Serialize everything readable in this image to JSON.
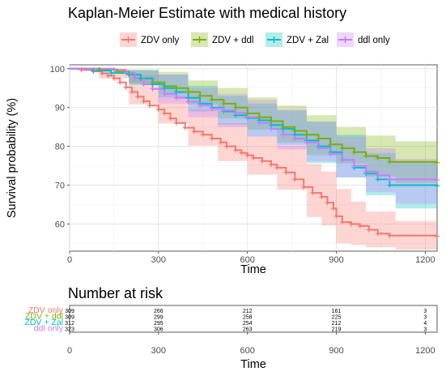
{
  "chart_data": [
    {
      "type": "line",
      "title": "Kaplan-Meier Estimate with medical history",
      "xlabel": "Time",
      "ylabel": "Survival probability (%)",
      "xlim": [
        0,
        1240
      ],
      "ylim": [
        53,
        101
      ],
      "x_ticks": [
        0,
        300,
        600,
        900,
        1200
      ],
      "y_ticks": [
        60,
        70,
        80,
        90,
        100
      ],
      "grid": true,
      "legend_position": "top",
      "series": [
        {
          "name": "ZDV only",
          "color": "#F8766D",
          "fill": "#F8766D",
          "points": [
            [
              0,
              100
            ],
            [
              40,
              99.7
            ],
            [
              80,
              99.3
            ],
            [
              110,
              98.8
            ],
            [
              130,
              98.2
            ],
            [
              150,
              97.5
            ],
            [
              170,
              96.5
            ],
            [
              190,
              95.2
            ],
            [
              210,
              94
            ],
            [
              230,
              92.8
            ],
            [
              250,
              91.6
            ],
            [
              270,
              90.5
            ],
            [
              300,
              89.5
            ],
            [
              320,
              88.5
            ],
            [
              340,
              87.2
            ],
            [
              360,
              86
            ],
            [
              390,
              84.8
            ],
            [
              420,
              83.8
            ],
            [
              450,
              83
            ],
            [
              480,
              82
            ],
            [
              510,
              81
            ],
            [
              530,
              80
            ],
            [
              560,
              79
            ],
            [
              580,
              78.3
            ],
            [
              600,
              77.7
            ],
            [
              620,
              77
            ],
            [
              650,
              76.2
            ],
            [
              680,
              75.3
            ],
            [
              700,
              74.5
            ],
            [
              730,
              73.3
            ],
            [
              760,
              71.5
            ],
            [
              790,
              69.5
            ],
            [
              820,
              68
            ],
            [
              850,
              67
            ],
            [
              870,
              65.5
            ],
            [
              890,
              64
            ],
            [
              900,
              62
            ],
            [
              920,
              60.5
            ],
            [
              950,
              60
            ],
            [
              980,
              59.5
            ],
            [
              1010,
              58.5
            ],
            [
              1040,
              57.5
            ],
            [
              1080,
              57
            ],
            [
              1240,
              56.8
            ]
          ],
          "ci_upper": [
            [
              0,
              100
            ],
            [
              100,
              99.9
            ],
            [
              200,
              98.3
            ],
            [
              300,
              93.2
            ],
            [
              400,
              89.6
            ],
            [
              500,
              86
            ],
            [
              600,
              82.7
            ],
            [
              700,
              80.2
            ],
            [
              800,
              75.5
            ],
            [
              850,
              73.5
            ],
            [
              900,
              69
            ],
            [
              950,
              65.8
            ],
            [
              1000,
              63.2
            ],
            [
              1100,
              60.8
            ],
            [
              1240,
              60.5
            ]
          ],
          "ci_lower": [
            [
              0,
              100
            ],
            [
              100,
              97.5
            ],
            [
              200,
              90.8
            ],
            [
              300,
              85.9
            ],
            [
              400,
              80.2
            ],
            [
              500,
              76.2
            ],
            [
              600,
              72.7
            ],
            [
              700,
              68.8
            ],
            [
              800,
              61.8
            ],
            [
              850,
              59.6
            ],
            [
              900,
              55
            ],
            [
              950,
              54.6
            ],
            [
              1000,
              54
            ],
            [
              1100,
              53.4
            ],
            [
              1240,
              53.2
            ]
          ]
        },
        {
          "name": "ZDV + ddl",
          "color": "#7CAE00",
          "fill": "#7CAE00",
          "points": [
            [
              0,
              100
            ],
            [
              100,
              99.8
            ],
            [
              160,
              99.3
            ],
            [
              200,
              98.5
            ],
            [
              240,
              97.5
            ],
            [
              280,
              96.5
            ],
            [
              320,
              95.5
            ],
            [
              360,
              95
            ],
            [
              400,
              94
            ],
            [
              440,
              93
            ],
            [
              480,
              92
            ],
            [
              520,
              91
            ],
            [
              560,
              90
            ],
            [
              600,
              88.5
            ],
            [
              640,
              87.5
            ],
            [
              680,
              86.5
            ],
            [
              720,
              85
            ],
            [
              760,
              84
            ],
            [
              800,
              83
            ],
            [
              840,
              82
            ],
            [
              880,
              80.5
            ],
            [
              920,
              79.5
            ],
            [
              960,
              78.5
            ],
            [
              1000,
              77.5
            ],
            [
              1040,
              77
            ],
            [
              1080,
              76
            ],
            [
              1240,
              75.8
            ]
          ],
          "ci_upper": [
            [
              0,
              100
            ],
            [
              200,
              99.8
            ],
            [
              300,
              99.2
            ],
            [
              400,
              97
            ],
            [
              500,
              95
            ],
            [
              600,
              92.6
            ],
            [
              700,
              90.5
            ],
            [
              800,
              88
            ],
            [
              900,
              85
            ],
            [
              1000,
              82.8
            ],
            [
              1100,
              81.3
            ],
            [
              1240,
              81.2
            ]
          ],
          "ci_lower": [
            [
              0,
              100
            ],
            [
              200,
              96.2
            ],
            [
              300,
              93.4
            ],
            [
              400,
              90.8
            ],
            [
              500,
              87.2
            ],
            [
              600,
              84.3
            ],
            [
              700,
              81
            ],
            [
              800,
              77.8
            ],
            [
              900,
              75.6
            ],
            [
              1000,
              72.2
            ],
            [
              1100,
              70.6
            ],
            [
              1240,
              70.4
            ]
          ]
        },
        {
          "name": "ZDV + Zal",
          "color": "#00BFC4",
          "fill": "#00BFC4",
          "points": [
            [
              0,
              100
            ],
            [
              80,
              99.5
            ],
            [
              140,
              98.9
            ],
            [
              200,
              98.5
            ],
            [
              240,
              97.5
            ],
            [
              280,
              96
            ],
            [
              320,
              95
            ],
            [
              360,
              94
            ],
            [
              400,
              92.5
            ],
            [
              440,
              91
            ],
            [
              480,
              90
            ],
            [
              520,
              89
            ],
            [
              560,
              88
            ],
            [
              600,
              87.3
            ],
            [
              640,
              86.7
            ],
            [
              680,
              85.5
            ],
            [
              720,
              84.5
            ],
            [
              760,
              83
            ],
            [
              800,
              81.5
            ],
            [
              840,
              80
            ],
            [
              880,
              78.5
            ],
            [
              920,
              76.5
            ],
            [
              960,
              74.5
            ],
            [
              1000,
              73
            ],
            [
              1040,
              71.5
            ],
            [
              1080,
              70
            ],
            [
              1240,
              69.8
            ]
          ],
          "ci_upper": [
            [
              0,
              100
            ],
            [
              200,
              99.6
            ],
            [
              300,
              98.5
            ],
            [
              400,
              95.6
            ],
            [
              500,
              93
            ],
            [
              600,
              91
            ],
            [
              700,
              89.2
            ],
            [
              800,
              86.4
            ],
            [
              900,
              83
            ],
            [
              1000,
              78.3
            ],
            [
              1100,
              76.2
            ],
            [
              1240,
              76
            ]
          ],
          "ci_lower": [
            [
              0,
              100
            ],
            [
              200,
              95.8
            ],
            [
              300,
              92.6
            ],
            [
              400,
              89
            ],
            [
              500,
              85.6
            ],
            [
              600,
              82.6
            ],
            [
              700,
              80.4
            ],
            [
              800,
              75.7
            ],
            [
              900,
              72
            ],
            [
              1000,
              67.4
            ],
            [
              1100,
              64
            ],
            [
              1240,
              63.8
            ]
          ]
        },
        {
          "name": "ddl only",
          "color": "#C77CFF",
          "fill": "#C77CFF",
          "points": [
            [
              0,
              100
            ],
            [
              150,
              99.7
            ],
            [
              190,
              99
            ],
            [
              220,
              97.5
            ],
            [
              250,
              96
            ],
            [
              280,
              94.8
            ],
            [
              320,
              93.5
            ],
            [
              360,
              92.5
            ],
            [
              400,
              91.5
            ],
            [
              440,
              90.5
            ],
            [
              480,
              89.8
            ],
            [
              520,
              89.3
            ],
            [
              560,
              88.6
            ],
            [
              600,
              87.5
            ],
            [
              640,
              86
            ],
            [
              680,
              84.5
            ],
            [
              720,
              83
            ],
            [
              760,
              82
            ],
            [
              800,
              81
            ],
            [
              840,
              79.5
            ],
            [
              880,
              78
            ],
            [
              920,
              76.5
            ],
            [
              960,
              75
            ],
            [
              1000,
              73.5
            ],
            [
              1040,
              72.5
            ],
            [
              1080,
              71.5
            ],
            [
              1240,
              71.3
            ]
          ],
          "ci_upper": [
            [
              0,
              100
            ],
            [
              200,
              99.5
            ],
            [
              300,
              98.5
            ],
            [
              400,
              95
            ],
            [
              500,
              93.5
            ],
            [
              600,
              92
            ],
            [
              700,
              89.5
            ],
            [
              800,
              86.3
            ],
            [
              900,
              82.5
            ],
            [
              1000,
              79.5
            ],
            [
              1100,
              76.8
            ],
            [
              1240,
              76.6
            ]
          ],
          "ci_lower": [
            [
              0,
              100
            ],
            [
              200,
              96.3
            ],
            [
              300,
              91
            ],
            [
              400,
              87.5
            ],
            [
              500,
              85
            ],
            [
              600,
              82.6
            ],
            [
              700,
              79.2
            ],
            [
              800,
              76.1
            ],
            [
              900,
              72
            ],
            [
              1000,
              68.2
            ],
            [
              1100,
              65.2
            ],
            [
              1240,
              65
            ]
          ]
        }
      ]
    },
    {
      "type": "table",
      "title": "Number at risk",
      "xlabel": "Time",
      "x_ticks": [
        0,
        300,
        600,
        900,
        1200
      ],
      "rows": [
        {
          "label": "ZDV only",
          "color": "#F8766D",
          "values": [
            "309",
            "266",
            "212",
            "161",
            "3"
          ]
        },
        {
          "label": "ZDV + ddl",
          "color": "#7CAE00",
          "values": [
            "309",
            "299",
            "258",
            "225",
            "3"
          ]
        },
        {
          "label": "ZDV + Zal",
          "color": "#00BFC4",
          "values": [
            "312",
            "295",
            "254",
            "212",
            "4"
          ]
        },
        {
          "label": "ddl only",
          "color": "#C77CFF",
          "values": [
            "323",
            "306",
            "263",
            "219",
            "3"
          ]
        }
      ]
    }
  ]
}
